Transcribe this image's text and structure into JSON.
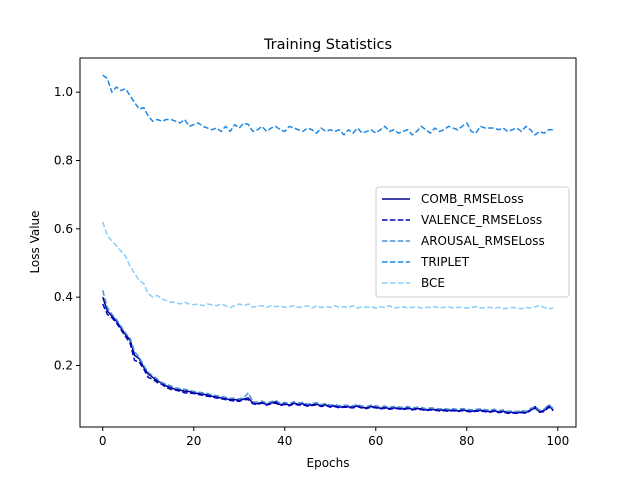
{
  "chart_data": {
    "type": "line",
    "title": "Training Statistics",
    "xlabel": "Epochs",
    "ylabel": "Loss Value",
    "xlim": [
      -5,
      104
    ],
    "ylim": [
      0.02,
      1.1
    ],
    "xticks": [
      0,
      20,
      40,
      60,
      80,
      100
    ],
    "yticks": [
      0.2,
      0.4,
      0.6,
      0.8,
      1.0
    ],
    "ytick_labels": [
      "0.2",
      "0.4",
      "0.6",
      "0.8",
      "1.0"
    ],
    "grid": false,
    "legend_position": "center-right",
    "epochs": [
      0,
      1,
      2,
      3,
      4,
      5,
      6,
      7,
      8,
      9,
      10,
      11,
      12,
      13,
      14,
      15,
      16,
      17,
      18,
      19,
      20,
      21,
      22,
      23,
      24,
      25,
      26,
      27,
      28,
      29,
      30,
      31,
      32,
      33,
      34,
      35,
      36,
      37,
      38,
      39,
      40,
      41,
      42,
      43,
      44,
      45,
      46,
      47,
      48,
      49,
      50,
      51,
      52,
      53,
      54,
      55,
      56,
      57,
      58,
      59,
      60,
      61,
      62,
      63,
      64,
      65,
      66,
      67,
      68,
      69,
      70,
      71,
      72,
      73,
      74,
      75,
      76,
      77,
      78,
      79,
      80,
      81,
      82,
      83,
      84,
      85,
      86,
      87,
      88,
      89,
      90,
      91,
      92,
      93,
      94,
      95,
      96,
      97,
      98,
      99
    ],
    "series": [
      {
        "name": "COMB_RMSELoss",
        "color": "#00008b",
        "dash": "solid",
        "values": [
          0.4,
          0.36,
          0.345,
          0.33,
          0.31,
          0.29,
          0.275,
          0.23,
          0.22,
          0.195,
          0.175,
          0.165,
          0.155,
          0.148,
          0.14,
          0.135,
          0.13,
          0.128,
          0.125,
          0.124,
          0.12,
          0.118,
          0.116,
          0.114,
          0.11,
          0.108,
          0.105,
          0.103,
          0.1,
          0.1,
          0.098,
          0.102,
          0.105,
          0.09,
          0.088,
          0.092,
          0.086,
          0.09,
          0.094,
          0.085,
          0.088,
          0.084,
          0.09,
          0.086,
          0.088,
          0.083,
          0.085,
          0.087,
          0.082,
          0.085,
          0.08,
          0.082,
          0.078,
          0.08,
          0.079,
          0.078,
          0.082,
          0.077,
          0.076,
          0.08,
          0.078,
          0.075,
          0.077,
          0.074,
          0.076,
          0.075,
          0.073,
          0.076,
          0.072,
          0.074,
          0.073,
          0.07,
          0.072,
          0.071,
          0.069,
          0.07,
          0.068,
          0.07,
          0.067,
          0.07,
          0.068,
          0.066,
          0.068,
          0.069,
          0.067,
          0.065,
          0.068,
          0.064,
          0.066,
          0.062,
          0.063,
          0.061,
          0.064,
          0.062,
          0.07,
          0.075,
          0.065,
          0.068,
          0.082,
          0.07
        ]
      },
      {
        "name": "VALENCE_RMSELoss",
        "color": "#0000cd",
        "dash": "dashed",
        "values": [
          0.38,
          0.35,
          0.34,
          0.325,
          0.305,
          0.285,
          0.265,
          0.215,
          0.21,
          0.19,
          0.165,
          0.16,
          0.15,
          0.145,
          0.135,
          0.13,
          0.128,
          0.125,
          0.12,
          0.12,
          0.118,
          0.115,
          0.113,
          0.11,
          0.108,
          0.105,
          0.103,
          0.1,
          0.098,
          0.096,
          0.095,
          0.1,
          0.1,
          0.088,
          0.086,
          0.09,
          0.084,
          0.088,
          0.09,
          0.083,
          0.086,
          0.082,
          0.088,
          0.084,
          0.085,
          0.081,
          0.083,
          0.085,
          0.08,
          0.083,
          0.078,
          0.08,
          0.076,
          0.078,
          0.077,
          0.076,
          0.08,
          0.075,
          0.074,
          0.078,
          0.076,
          0.073,
          0.075,
          0.072,
          0.074,
          0.073,
          0.071,
          0.074,
          0.07,
          0.072,
          0.071,
          0.068,
          0.07,
          0.069,
          0.067,
          0.068,
          0.066,
          0.068,
          0.065,
          0.068,
          0.066,
          0.064,
          0.066,
          0.067,
          0.065,
          0.063,
          0.066,
          0.062,
          0.064,
          0.06,
          0.061,
          0.06,
          0.062,
          0.06,
          0.068,
          0.08,
          0.063,
          0.065,
          0.078,
          0.068
        ]
      },
      {
        "name": "AROUSAL_RMSELoss",
        "color": "#4a90d9",
        "dash": "dashed",
        "values": [
          0.42,
          0.37,
          0.35,
          0.335,
          0.315,
          0.295,
          0.28,
          0.24,
          0.225,
          0.2,
          0.18,
          0.17,
          0.16,
          0.15,
          0.145,
          0.14,
          0.135,
          0.132,
          0.13,
          0.128,
          0.124,
          0.122,
          0.12,
          0.118,
          0.114,
          0.112,
          0.109,
          0.107,
          0.104,
          0.104,
          0.102,
          0.106,
          0.12,
          0.094,
          0.092,
          0.096,
          0.09,
          0.094,
          0.098,
          0.089,
          0.092,
          0.088,
          0.094,
          0.09,
          0.092,
          0.087,
          0.089,
          0.091,
          0.086,
          0.089,
          0.084,
          0.086,
          0.082,
          0.084,
          0.083,
          0.082,
          0.086,
          0.081,
          0.08,
          0.084,
          0.082,
          0.079,
          0.081,
          0.078,
          0.08,
          0.079,
          0.077,
          0.08,
          0.076,
          0.078,
          0.077,
          0.074,
          0.076,
          0.075,
          0.073,
          0.074,
          0.072,
          0.074,
          0.071,
          0.074,
          0.072,
          0.07,
          0.072,
          0.073,
          0.071,
          0.069,
          0.072,
          0.068,
          0.07,
          0.066,
          0.067,
          0.065,
          0.068,
          0.066,
          0.074,
          0.08,
          0.069,
          0.072,
          0.086,
          0.074
        ]
      },
      {
        "name": "TRIPLET",
        "color": "#1e88e5",
        "dash": "dashed",
        "values": [
          1.05,
          1.04,
          1.0,
          1.015,
          1.005,
          1.01,
          0.99,
          0.97,
          0.95,
          0.955,
          0.93,
          0.915,
          0.92,
          0.915,
          0.92,
          0.92,
          0.915,
          0.91,
          0.92,
          0.9,
          0.905,
          0.91,
          0.9,
          0.895,
          0.89,
          0.895,
          0.885,
          0.9,
          0.885,
          0.905,
          0.895,
          0.91,
          0.905,
          0.885,
          0.89,
          0.9,
          0.885,
          0.895,
          0.9,
          0.89,
          0.885,
          0.9,
          0.895,
          0.89,
          0.885,
          0.895,
          0.89,
          0.88,
          0.895,
          0.885,
          0.89,
          0.885,
          0.89,
          0.875,
          0.89,
          0.88,
          0.895,
          0.88,
          0.885,
          0.89,
          0.88,
          0.89,
          0.9,
          0.885,
          0.89,
          0.88,
          0.885,
          0.89,
          0.875,
          0.885,
          0.9,
          0.89,
          0.88,
          0.895,
          0.885,
          0.89,
          0.9,
          0.895,
          0.89,
          0.9,
          0.91,
          0.885,
          0.88,
          0.9,
          0.895,
          0.895,
          0.895,
          0.89,
          0.895,
          0.885,
          0.89,
          0.895,
          0.885,
          0.9,
          0.89,
          0.875,
          0.885,
          0.88,
          0.89,
          0.89
        ]
      },
      {
        "name": "BCE",
        "color": "#87cefa",
        "dash": "dashed",
        "values": [
          0.62,
          0.58,
          0.565,
          0.55,
          0.535,
          0.52,
          0.49,
          0.47,
          0.45,
          0.44,
          0.41,
          0.4,
          0.405,
          0.395,
          0.39,
          0.385,
          0.385,
          0.38,
          0.385,
          0.38,
          0.378,
          0.38,
          0.375,
          0.38,
          0.378,
          0.375,
          0.38,
          0.375,
          0.37,
          0.375,
          0.38,
          0.375,
          0.38,
          0.37,
          0.375,
          0.375,
          0.37,
          0.375,
          0.372,
          0.375,
          0.37,
          0.372,
          0.375,
          0.37,
          0.372,
          0.375,
          0.368,
          0.375,
          0.37,
          0.372,
          0.37,
          0.375,
          0.37,
          0.372,
          0.37,
          0.375,
          0.368,
          0.372,
          0.37,
          0.372,
          0.368,
          0.372,
          0.37,
          0.375,
          0.368,
          0.37,
          0.372,
          0.368,
          0.37,
          0.372,
          0.368,
          0.37,
          0.37,
          0.372,
          0.368,
          0.37,
          0.372,
          0.368,
          0.37,
          0.37,
          0.368,
          0.37,
          0.372,
          0.368,
          0.37,
          0.37,
          0.368,
          0.37,
          0.366,
          0.368,
          0.37,
          0.368,
          0.366,
          0.37,
          0.368,
          0.372,
          0.375,
          0.37,
          0.366,
          0.368
        ]
      }
    ]
  }
}
